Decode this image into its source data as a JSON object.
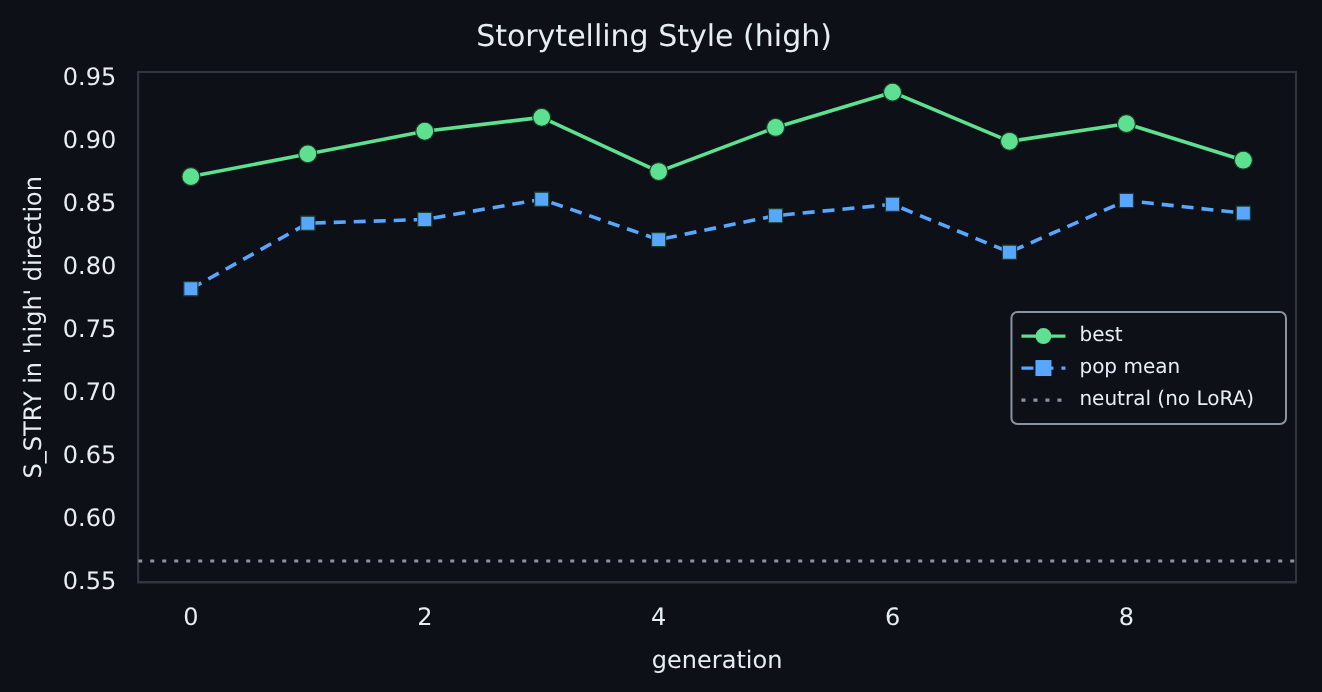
{
  "chart_data": {
    "type": "line",
    "title": "Storytelling Style (high)",
    "xlabel": "generation",
    "ylabel": "S_STRY in 'high' direction",
    "x": [
      0,
      1,
      2,
      3,
      4,
      5,
      6,
      7,
      8,
      9
    ],
    "series": [
      {
        "name": "best",
        "color": "#5de08f",
        "marker": "circle",
        "line_style": "solid",
        "values": [
          0.872,
          0.89,
          0.908,
          0.919,
          0.876,
          0.911,
          0.939,
          0.9,
          0.914,
          0.885
        ]
      },
      {
        "name": "pop mean",
        "color": "#58a6ff",
        "marker": "square",
        "line_style": "dashed",
        "values": [
          0.783,
          0.835,
          0.838,
          0.854,
          0.822,
          0.841,
          0.85,
          0.812,
          0.853,
          0.843
        ]
      }
    ],
    "ref_lines": [
      {
        "axis": "y",
        "value": 0.567,
        "label": "neutral (no LoRA)",
        "color": "#8b949e",
        "line_style": "dotted"
      }
    ],
    "xlim": [
      -0.45,
      9.45
    ],
    "xticks": [
      0,
      2,
      4,
      6,
      8
    ],
    "ylim": [
      0.55,
      0.955
    ],
    "yticks": [
      0.55,
      {
        "value": 0.6,
        "label": "0.60"
      },
      0.65,
      {
        "value": 0.7,
        "label": "0.70"
      },
      0.75,
      {
        "value": 0.8,
        "label": "0.80"
      },
      0.85,
      {
        "value": 0.9,
        "label": "0.90"
      },
      0.95
    ],
    "grid": false,
    "legend": "center right"
  }
}
